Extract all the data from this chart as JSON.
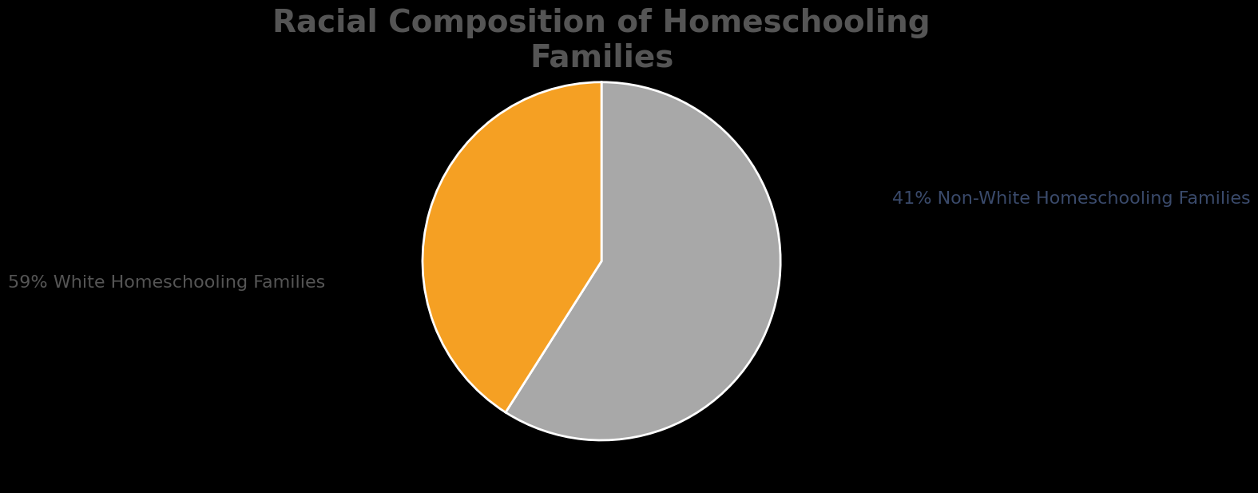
{
  "title": "Racial Composition of Homeschooling\nFamilies",
  "slices": [
    59,
    41
  ],
  "labels": [
    "59% White Homeschooling Families",
    "41% Non-White Homeschooling Families"
  ],
  "colors": [
    "#a8a8a8",
    "#f5a023"
  ],
  "background_color": "#000000",
  "title_color": "#555555",
  "label_color": "#555555",
  "label_color_right": "#3a4a6b",
  "title_fontsize": 28,
  "label_fontsize": 16,
  "startangle": 90
}
